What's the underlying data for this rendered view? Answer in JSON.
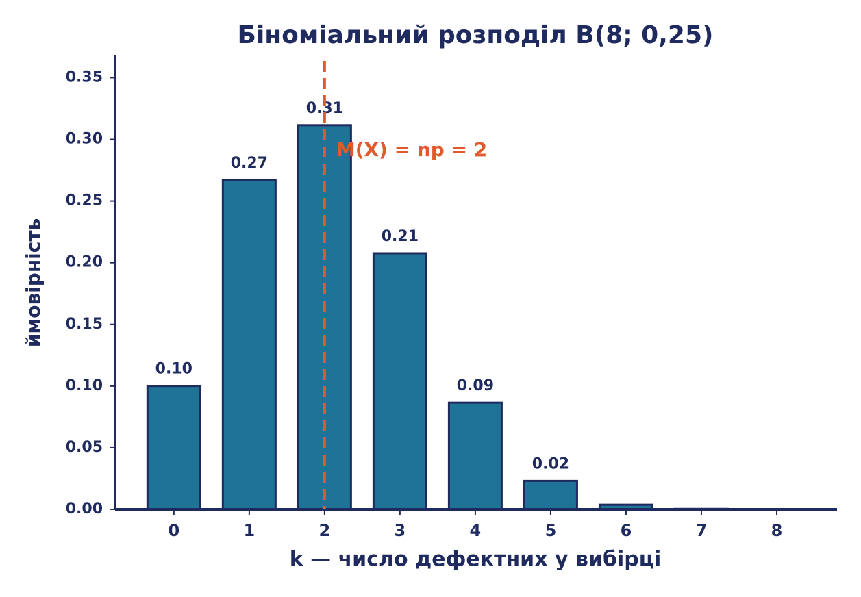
{
  "chart_data": {
    "type": "bar",
    "title": "Біноміальний розподіл  B(8; 0,25)",
    "x_label": "k — число дефектних у вибірці",
    "y_label": "ймовірність",
    "x": [
      0,
      1,
      2,
      3,
      4,
      5,
      6,
      7,
      8
    ],
    "values": [
      0.1001,
      0.267,
      0.3115,
      0.2076,
      0.0865,
      0.0231,
      0.0038,
      0.0004,
      0.0
    ],
    "value_labels": [
      "0.10",
      "0.27",
      "0.31",
      "0.21",
      "0.09",
      "0.02",
      null,
      null,
      null
    ],
    "color": "#1f7396",
    "edge_color": "#1f2a5e",
    "xlim": [
      -0.78,
      8.8
    ],
    "xticks": [
      0,
      1,
      2,
      3,
      4,
      5,
      6,
      7,
      8
    ],
    "ylim": [
      0,
      0.368
    ],
    "yticks": [
      {
        "value": 0,
        "label": "0.00"
      },
      {
        "value": 0.05,
        "label": "0.05"
      },
      {
        "value": 0.1,
        "label": "0.10"
      },
      {
        "value": 0.15,
        "label": "0.15"
      },
      {
        "value": 0.2,
        "label": "0.20"
      },
      {
        "value": 0.25,
        "label": "0.25"
      },
      {
        "value": 0.3,
        "label": "0.30"
      },
      {
        "value": 0.35,
        "label": "0.35"
      }
    ],
    "mean_line": {
      "x": 2,
      "label": "M(X) = np = 2",
      "color": "#e05a2b"
    },
    "grid": false
  }
}
